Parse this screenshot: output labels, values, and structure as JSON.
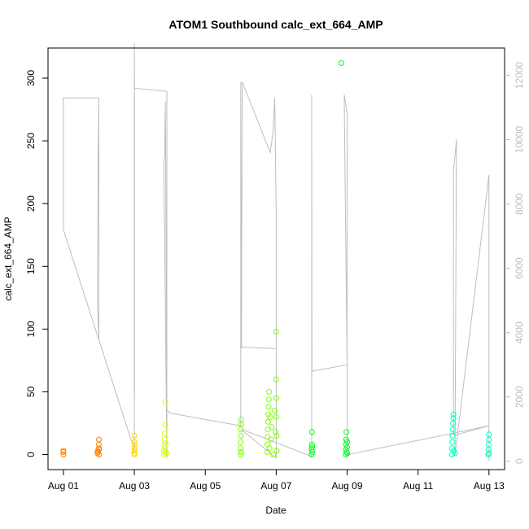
{
  "chart_data": {
    "type": "scatter",
    "title": "ATOM1 Southbound calc_ext_664_AMP",
    "xlabel": "Date",
    "ylabel": "calc_ext_664_AMP",
    "xlim": [
      "2017-07-31T13:34",
      "2017-08-13T10:34"
    ],
    "ylim": [
      -12,
      324
    ],
    "y2lim": [
      -260,
      12850
    ],
    "x_ticks": [
      "Aug 01",
      "Aug 03",
      "Aug 05",
      "Aug 07",
      "Aug 09",
      "Aug 11",
      "Aug 13"
    ],
    "y_ticks": [
      0,
      50,
      100,
      150,
      200,
      250,
      300
    ],
    "y2_ticks": [
      0,
      2000,
      4000,
      6000,
      8000,
      10000,
      12000
    ],
    "grid": false,
    "legend": "none",
    "colors": {
      "line": "#bebebe",
      "axis": "#000000",
      "right_axis": "#bebebe"
    },
    "series": [
      {
        "color": "#ff8000",
        "points": [
          [
            "2017-08-01T00:00",
            2
          ],
          [
            "2017-08-01T00:00",
            0
          ],
          [
            "2017-08-01T00:00",
            3
          ],
          [
            "2017-08-01T23:00",
            1
          ],
          [
            "2017-08-01T23:10",
            3
          ],
          [
            "2017-08-01T23:30",
            2
          ],
          [
            "2017-08-02T00:00",
            5
          ],
          [
            "2017-08-02T00:00",
            8
          ],
          [
            "2017-08-02T00:00",
            12
          ],
          [
            "2017-08-02T00:10",
            4
          ],
          [
            "2017-08-02T00:10",
            0
          ]
        ]
      },
      {
        "color": "#ffd500",
        "points": [
          [
            "2017-08-02T23:50",
            1
          ],
          [
            "2017-08-03T00:00",
            5
          ],
          [
            "2017-08-03T00:00",
            10
          ],
          [
            "2017-08-03T00:00",
            15
          ],
          [
            "2017-08-03T00:10",
            3
          ],
          [
            "2017-08-03T00:10",
            0
          ],
          [
            "2017-08-03T00:20",
            8
          ]
        ]
      },
      {
        "color": "#ddff00",
        "points": [
          [
            "2017-08-03T20:00",
            0
          ],
          [
            "2017-08-03T20:00",
            3
          ],
          [
            "2017-08-03T20:10",
            7
          ],
          [
            "2017-08-03T20:20",
            12
          ],
          [
            "2017-08-03T20:30",
            17
          ],
          [
            "2017-08-03T20:40",
            5
          ],
          [
            "2017-08-03T21:00",
            24
          ],
          [
            "2017-08-03T21:00",
            42
          ],
          [
            "2017-08-03T21:10",
            9
          ],
          [
            "2017-08-03T21:20",
            2
          ],
          [
            "2017-08-03T21:30",
            1
          ]
        ]
      },
      {
        "color": "#80ff00",
        "points": [
          [
            "2017-08-06T00:00",
            0
          ],
          [
            "2017-08-06T00:00",
            5
          ],
          [
            "2017-08-06T00:00",
            10
          ],
          [
            "2017-08-06T00:10",
            15
          ],
          [
            "2017-08-06T00:10",
            20
          ],
          [
            "2017-08-06T00:10",
            24
          ],
          [
            "2017-08-06T00:20",
            28
          ],
          [
            "2017-08-06T00:20",
            2
          ],
          [
            "2017-08-06T18:00",
            2
          ],
          [
            "2017-08-06T18:00",
            8
          ],
          [
            "2017-08-06T18:10",
            14
          ],
          [
            "2017-08-06T18:20",
            20
          ],
          [
            "2017-08-06T18:30",
            26
          ],
          [
            "2017-08-06T18:40",
            32
          ],
          [
            "2017-08-06T18:50",
            38
          ],
          [
            "2017-08-06T19:00",
            44
          ],
          [
            "2017-08-06T19:10",
            50
          ],
          [
            "2017-08-06T19:30",
            5
          ],
          [
            "2017-08-06T20:00",
            30
          ],
          [
            "2017-08-06T20:30",
            12
          ],
          [
            "2017-08-06T21:00",
            22
          ],
          [
            "2017-08-06T22:00",
            0
          ],
          [
            "2017-08-06T23:00",
            35
          ],
          [
            "2017-08-06T23:30",
            18
          ],
          [
            "2017-08-07T00:00",
            60
          ],
          [
            "2017-08-07T00:00",
            98
          ],
          [
            "2017-08-07T00:10",
            45
          ],
          [
            "2017-08-07T00:10",
            30
          ],
          [
            "2017-08-07T00:20",
            15
          ],
          [
            "2017-08-07T00:20",
            3
          ]
        ]
      },
      {
        "color": "#00ff20",
        "points": [
          [
            "2017-08-08T00:00",
            0
          ],
          [
            "2017-08-08T00:00",
            4
          ],
          [
            "2017-08-08T00:10",
            8
          ],
          [
            "2017-08-08T00:10",
            18
          ],
          [
            "2017-08-08T00:20",
            2
          ],
          [
            "2017-08-08T00:20",
            6
          ],
          [
            "2017-08-08T20:00",
            312
          ],
          [
            "2017-08-08T23:00",
            0
          ],
          [
            "2017-08-08T23:00",
            4
          ],
          [
            "2017-08-08T23:10",
            8
          ],
          [
            "2017-08-08T23:20",
            12
          ],
          [
            "2017-08-08T23:30",
            18
          ],
          [
            "2017-08-08T23:40",
            2
          ],
          [
            "2017-08-09T00:00",
            6
          ],
          [
            "2017-08-09T00:00",
            10
          ],
          [
            "2017-08-09T00:10",
            1
          ]
        ]
      },
      {
        "color": "#00ffbf",
        "points": [
          [
            "2017-08-11T23:00",
            0
          ],
          [
            "2017-08-11T23:00",
            5
          ],
          [
            "2017-08-11T23:10",
            10
          ],
          [
            "2017-08-11T23:20",
            15
          ],
          [
            "2017-08-11T23:30",
            20
          ],
          [
            "2017-08-11T23:40",
            25
          ],
          [
            "2017-08-12T00:00",
            29
          ],
          [
            "2017-08-12T00:00",
            32
          ],
          [
            "2017-08-12T00:10",
            3
          ],
          [
            "2017-08-12T01:00",
            1
          ],
          [
            "2017-08-12T23:30",
            0
          ],
          [
            "2017-08-12T23:40",
            4
          ],
          [
            "2017-08-12T23:50",
            8
          ],
          [
            "2017-08-13T00:00",
            12
          ],
          [
            "2017-08-13T00:00",
            16
          ],
          [
            "2017-08-13T00:10",
            1
          ]
        ]
      }
    ],
    "line_series": {
      "axis": "right",
      "points": [
        [
          "2017-08-01T00:00",
          11300
        ],
        [
          "2017-08-02T00:00",
          11300
        ],
        [
          "2017-08-02T00:00",
          3800
        ],
        [
          "2017-08-01T23:00",
          4900
        ],
        [
          "2017-08-01T23:30",
          9500
        ],
        [
          "2017-08-02T00:00",
          11300
        ],
        [
          "2017-08-01T00:00",
          11300
        ],
        [
          "2017-08-01T00:00",
          7200
        ],
        [
          "2017-08-03T00:00",
          350
        ],
        [
          "2017-08-03T00:00",
          13000
        ],
        [
          "2017-08-03T00:10",
          11000
        ],
        [
          "2017-08-03T00:10",
          2100
        ],
        [
          "2017-08-03T00:00",
          11600
        ],
        [
          "2017-08-03T22:00",
          11500
        ],
        [
          "2017-08-03T22:00",
          100
        ],
        [
          "2017-08-03T20:00",
          9300
        ],
        [
          "2017-08-03T20:30",
          9500
        ],
        [
          "2017-08-03T21:00",
          11200
        ],
        [
          "2017-08-03T22:00",
          1600
        ],
        [
          "2017-08-04T00:00",
          1500
        ],
        [
          "2017-08-06T00:00",
          1100
        ],
        [
          "2017-08-06T00:00",
          11800
        ],
        [
          "2017-08-06T00:30",
          3500
        ],
        [
          "2017-08-06T01:00",
          11800
        ],
        [
          "2017-08-06T20:00",
          9600
        ],
        [
          "2017-08-06T22:00",
          10300
        ],
        [
          "2017-08-06T23:00",
          11300
        ],
        [
          "2017-08-07T00:00",
          7600
        ],
        [
          "2017-08-07T00:00",
          3500
        ],
        [
          "2017-08-06T00:30",
          3550
        ],
        [
          "2017-08-07T00:00",
          3500
        ],
        [
          "2017-08-07T00:00",
          100
        ],
        [
          "2017-08-06T00:00",
          1000
        ],
        [
          "2017-08-08T00:00",
          150
        ],
        [
          "2017-08-08T00:00",
          11400
        ],
        [
          "2017-08-08T00:10",
          2900
        ],
        [
          "2017-08-08T00:20",
          2800
        ],
        [
          "2017-08-09T00:00",
          3000
        ],
        [
          "2017-08-08T22:00",
          11400
        ],
        [
          "2017-08-09T00:00",
          10800
        ],
        [
          "2017-08-09T00:00",
          100
        ],
        [
          "2017-08-09T00:00",
          200
        ],
        [
          "2017-08-13T00:00",
          1100
        ],
        [
          "2017-08-12T00:00",
          800
        ],
        [
          "2017-08-12T00:00",
          9000
        ],
        [
          "2017-08-12T02:00",
          10000
        ],
        [
          "2017-08-12T01:00",
          200
        ],
        [
          "2017-08-13T00:00",
          8900
        ],
        [
          "2017-08-13T00:00",
          0
        ]
      ]
    }
  }
}
